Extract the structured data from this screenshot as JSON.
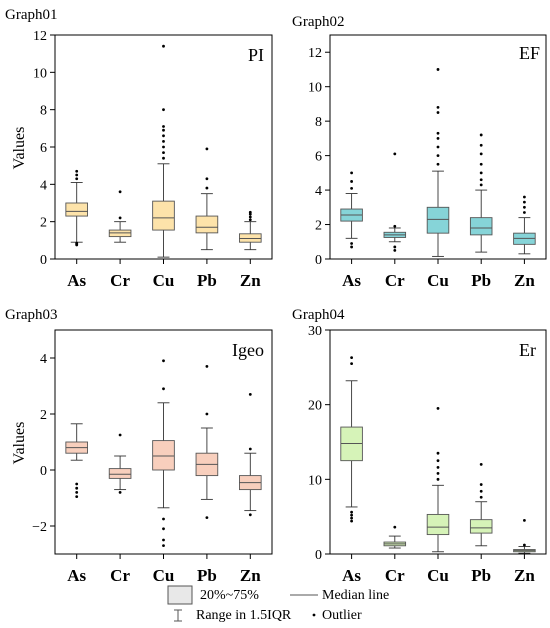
{
  "legend": {
    "box_label": "20%~75%",
    "median_label": "Median line",
    "range_label": "Range in 1.5IQR",
    "outlier_label": "Outlier"
  },
  "chart_data": [
    {
      "type": "box",
      "graph_label": "Graph01",
      "panel_label": "PI",
      "ylabel": "Values",
      "ylim": [
        0,
        12
      ],
      "yticks": [
        0,
        2,
        4,
        6,
        8,
        10,
        12
      ],
      "box_color": "#fde3aa",
      "categories": [
        "As",
        "Cr",
        "Cu",
        "Pb",
        "Zn"
      ],
      "boxes": [
        {
          "category": "As",
          "whisker_low": 0.9,
          "q1": 2.3,
          "median": 2.55,
          "q3": 3.0,
          "whisker_high": 4.1,
          "outliers": [
            0.75,
            0.8,
            0.85,
            4.3,
            4.5,
            4.7
          ]
        },
        {
          "category": "Cr",
          "whisker_low": 0.9,
          "q1": 1.2,
          "median": 1.4,
          "q3": 1.55,
          "whisker_high": 2.0,
          "outliers": [
            2.2,
            3.6
          ]
        },
        {
          "category": "Cu",
          "whisker_low": 0.1,
          "q1": 1.55,
          "median": 2.2,
          "q3": 3.1,
          "whisker_high": 5.1,
          "outliers": [
            5.4,
            5.7,
            6.0,
            6.3,
            6.6,
            6.9,
            7.1,
            8.0,
            11.4
          ]
        },
        {
          "category": "Pb",
          "whisker_low": 0.5,
          "q1": 1.4,
          "median": 1.7,
          "q3": 2.3,
          "whisker_high": 3.5,
          "outliers": [
            3.8,
            4.3,
            5.9
          ]
        },
        {
          "category": "Zn",
          "whisker_low": 0.5,
          "q1": 0.9,
          "median": 1.1,
          "q3": 1.35,
          "whisker_high": 2.0,
          "outliers": [
            2.1,
            2.25,
            2.4,
            2.5
          ]
        }
      ]
    },
    {
      "type": "box",
      "graph_label": "Graph02",
      "panel_label": "EF",
      "ylabel": "",
      "ylim": [
        0,
        13
      ],
      "yticks": [
        0,
        2,
        4,
        6,
        8,
        10,
        12
      ],
      "box_color": "#86d4d8",
      "categories": [
        "As",
        "Cr",
        "Cu",
        "Pb",
        "Zn"
      ],
      "boxes": [
        {
          "category": "As",
          "whisker_low": 1.2,
          "q1": 2.2,
          "median": 2.55,
          "q3": 2.9,
          "whisker_high": 3.8,
          "outliers": [
            0.7,
            0.9,
            4.1,
            4.5,
            5.0
          ]
        },
        {
          "category": "Cr",
          "whisker_low": 1.0,
          "q1": 1.25,
          "median": 1.4,
          "q3": 1.55,
          "whisker_high": 1.8,
          "outliers": [
            0.5,
            0.7,
            1.9,
            6.1
          ]
        },
        {
          "category": "Cu",
          "whisker_low": 0.15,
          "q1": 1.5,
          "median": 2.3,
          "q3": 3.0,
          "whisker_high": 5.1,
          "outliers": [
            5.5,
            6.0,
            6.5,
            7.0,
            7.3,
            8.5,
            8.8,
            11.0
          ]
        },
        {
          "category": "Pb",
          "whisker_low": 0.4,
          "q1": 1.4,
          "median": 1.8,
          "q3": 2.4,
          "whisker_high": 4.0,
          "outliers": [
            4.3,
            4.6,
            5.0,
            5.5,
            6.1,
            6.6,
            7.2
          ]
        },
        {
          "category": "Zn",
          "whisker_low": 0.3,
          "q1": 0.85,
          "median": 1.2,
          "q3": 1.5,
          "whisker_high": 2.4,
          "outliers": [
            2.7,
            3.0,
            3.3,
            3.6
          ]
        }
      ]
    },
    {
      "type": "box",
      "graph_label": "Graph03",
      "panel_label": "Igeo",
      "ylabel": "Values",
      "ylim": [
        -3,
        5
      ],
      "yticks": [
        -2,
        0,
        2,
        4
      ],
      "box_color": "#f8cfbd",
      "categories": [
        "As",
        "Cr",
        "Cu",
        "Pb",
        "Zn"
      ],
      "boxes": [
        {
          "category": "As",
          "whisker_low": 0.35,
          "q1": 0.6,
          "median": 0.8,
          "q3": 1.0,
          "whisker_high": 1.65,
          "outliers": [
            -0.5,
            -0.65,
            -0.8,
            -0.95
          ]
        },
        {
          "category": "Cr",
          "whisker_low": -0.7,
          "q1": -0.3,
          "median": -0.15,
          "q3": 0.05,
          "whisker_high": 0.5,
          "outliers": [
            -0.8,
            1.25
          ]
        },
        {
          "category": "Cu",
          "whisker_low": -1.35,
          "q1": 0.0,
          "median": 0.5,
          "q3": 1.05,
          "whisker_high": 2.4,
          "outliers": [
            -1.75,
            -2.1,
            -2.5,
            -2.7,
            2.9,
            3.9
          ]
        },
        {
          "category": "Pb",
          "whisker_low": -1.05,
          "q1": -0.2,
          "median": 0.2,
          "q3": 0.6,
          "whisker_high": 1.5,
          "outliers": [
            -1.7,
            2.0,
            3.7
          ]
        },
        {
          "category": "Zn",
          "whisker_low": -1.45,
          "q1": -0.7,
          "median": -0.45,
          "q3": -0.2,
          "whisker_high": 0.6,
          "outliers": [
            -1.6,
            0.75,
            2.7
          ]
        }
      ]
    },
    {
      "type": "box",
      "graph_label": "Graph04",
      "panel_label": "Er",
      "ylabel": "",
      "ylim": [
        0,
        30
      ],
      "yticks": [
        0,
        10,
        20,
        30
      ],
      "box_color": "#d6f3b8",
      "categories": [
        "As",
        "Cr",
        "Cu",
        "Pb",
        "Zn"
      ],
      "boxes": [
        {
          "category": "As",
          "whisker_low": 6.3,
          "q1": 12.5,
          "median": 14.8,
          "q3": 17.0,
          "whisker_high": 23.2,
          "outliers": [
            4.4,
            4.8,
            5.2,
            5.6,
            25.5,
            26.3
          ]
        },
        {
          "category": "Cr",
          "whisker_low": 0.8,
          "q1": 1.1,
          "median": 1.35,
          "q3": 1.6,
          "whisker_high": 2.4,
          "outliers": [
            3.6
          ]
        },
        {
          "category": "Cu",
          "whisker_low": 0.3,
          "q1": 2.6,
          "median": 3.6,
          "q3": 5.3,
          "whisker_high": 9.2,
          "outliers": [
            10.0,
            10.8,
            11.6,
            12.5,
            13.5,
            19.5
          ]
        },
        {
          "category": "Pb",
          "whisker_low": 1.1,
          "q1": 2.8,
          "median": 3.5,
          "q3": 4.6,
          "whisker_high": 7.0,
          "outliers": [
            7.6,
            8.4,
            9.3,
            12.0
          ]
        },
        {
          "category": "Zn",
          "whisker_low": 0.1,
          "q1": 0.3,
          "median": 0.45,
          "q3": 0.6,
          "whisker_high": 1.0,
          "outliers": [
            1.2,
            4.5
          ]
        }
      ]
    }
  ]
}
